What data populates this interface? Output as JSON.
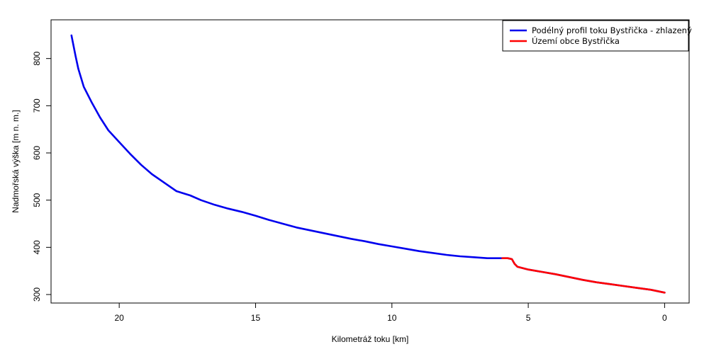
{
  "chart_data": {
    "type": "line",
    "title": "",
    "xlabel": "Kilometráž toku [km]",
    "ylabel": "Nadmořská výška [m n. m.]",
    "xlim": [
      22.5,
      -0.9
    ],
    "ylim": [
      282,
      882
    ],
    "x_ticks": [
      20,
      15,
      10,
      5,
      0
    ],
    "y_ticks": [
      300,
      400,
      500,
      600,
      700,
      800
    ],
    "legend_position": "top-right",
    "series": [
      {
        "name": "Podélný profil toku Bystřička - zhlazený",
        "color": "#0000ee",
        "x": [
          21.75,
          21.6,
          21.5,
          21.3,
          21.0,
          20.7,
          20.4,
          20.0,
          19.6,
          19.2,
          18.8,
          18.3,
          17.9,
          17.4,
          17.0,
          16.5,
          16.0,
          15.5,
          15.0,
          14.5,
          14.0,
          13.5,
          13.0,
          12.5,
          12.0,
          11.5,
          11.0,
          10.5,
          10.0,
          9.5,
          9.0,
          8.5,
          8.0,
          7.5,
          7.0,
          6.5,
          6.0,
          5.75,
          5.6,
          5.5,
          5.4,
          5.0,
          4.5,
          4.0,
          3.5,
          3.0,
          2.5,
          2.0,
          1.5,
          1.0,
          0.5,
          0.0
        ],
        "y": [
          849,
          805,
          778,
          740,
          706,
          675,
          648,
          623,
          598,
          575,
          555,
          535,
          519,
          510,
          500,
          490,
          482,
          475,
          467,
          458,
          450,
          442,
          436,
          430,
          424,
          418,
          413,
          407,
          402,
          397,
          392,
          388,
          384,
          381,
          379,
          377,
          377,
          377,
          375,
          365,
          359,
          353,
          348,
          343,
          337,
          331,
          326,
          322,
          318,
          314,
          310,
          304
        ]
      },
      {
        "name": "Území obce Bystřička",
        "color": "#ff0000",
        "x": [
          5.95,
          5.75,
          5.6,
          5.5,
          5.4,
          5.0,
          4.5,
          4.0,
          3.5,
          3.0,
          2.5,
          2.0,
          1.5,
          1.0,
          0.5,
          0.0
        ],
        "y": [
          377,
          377,
          375,
          365,
          359,
          353,
          348,
          343,
          337,
          331,
          326,
          322,
          318,
          314,
          310,
          304
        ]
      }
    ]
  }
}
